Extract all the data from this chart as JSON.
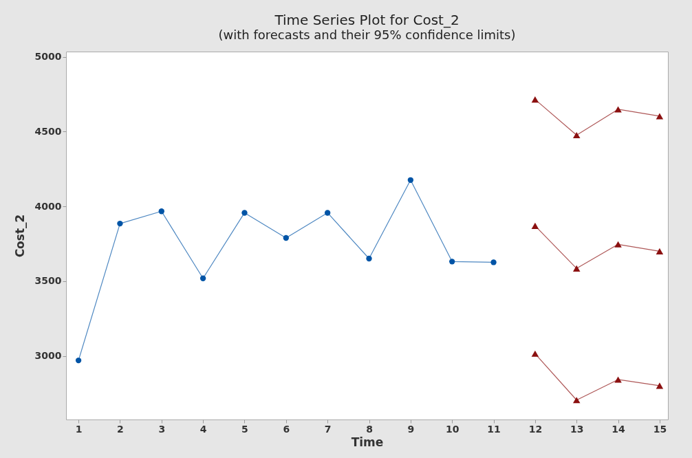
{
  "chart_data": {
    "type": "line",
    "title": "Time Series Plot for Cost_2",
    "subtitle": "(with forecasts and their 95% confidence limits)",
    "xlabel": "Time",
    "ylabel": "Cost_2",
    "xlim": [
      0.7,
      15.2
    ],
    "xticks": [
      1,
      2,
      3,
      4,
      5,
      6,
      7,
      8,
      9,
      10,
      11,
      12,
      13,
      14,
      15
    ],
    "ylim": [
      2575,
      5035
    ],
    "yticks": [
      3000,
      3500,
      4000,
      4500,
      5000
    ],
    "grid": false,
    "series": [
      {
        "color": "#0054a6",
        "marker": "circle",
        "x": [
          1,
          2,
          3,
          4,
          5,
          6,
          7,
          8,
          9,
          10,
          11
        ],
        "values": [
          2970,
          3885,
          3967,
          3519,
          3957,
          3789,
          3957,
          3651,
          4176,
          3631,
          3626
        ]
      },
      {
        "color": "#8b1010",
        "marker": "triangle",
        "x": [
          12,
          13,
          14,
          15
        ],
        "values": [
          4715,
          4476,
          4649,
          4603
        ]
      },
      {
        "color": "#8b1010",
        "marker": "triangle",
        "x": [
          12,
          13,
          14,
          15
        ],
        "values": [
          3870,
          3585,
          3746,
          3700
        ]
      },
      {
        "color": "#8b1010",
        "marker": "triangle",
        "x": [
          12,
          13,
          14,
          15
        ],
        "values": [
          3015,
          2705,
          2842,
          2801
        ]
      }
    ]
  }
}
